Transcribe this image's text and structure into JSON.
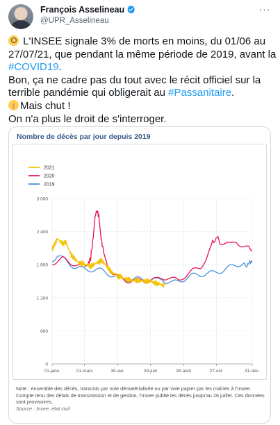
{
  "header": {
    "name": "François Asselineau",
    "handle": "@UPR_Asselineau"
  },
  "tweet": {
    "line1": "L'INSEE signale 3% de morts en moins, du 01/06 au 27/07/21, que pendant la même période de 2019, avant la ",
    "tag1": "#COVID19",
    "line1_end": ".",
    "line2": "Bon, ça ne cadre pas du tout avec le récit officiel sur la terrible pandémie qui obligerait au ",
    "tag2": "#Passanitaire",
    "line2_end": ".",
    "line3": "Mais chut !",
    "line4": "On n'a plus le droit de s'interroger.",
    "emoji1": "magnifying-glass-emoji",
    "emoji2": "shushing-face-emoji",
    "tag_color": "#1d9bf0"
  },
  "chart_data": {
    "type": "line",
    "title": "Nombre de décès par jour depuis 2019",
    "x_ticks": [
      "01-janv.",
      "01-mars",
      "30-avr.",
      "29-juin",
      "28-août",
      "27-oct.",
      "31-déc."
    ],
    "x_tick_days": [
      0,
      59,
      119,
      179,
      239,
      299,
      364
    ],
    "y_ticks": [
      "0",
      "600",
      "1 200",
      "1 800",
      "2 400",
      "3 000"
    ],
    "ylim": [
      0,
      3000
    ],
    "legend_position": "top-left",
    "series": [
      {
        "name": "2021",
        "color": "#f2c200",
        "points": [
          [
            0,
            2050
          ],
          [
            5,
            2150
          ],
          [
            10,
            2250
          ],
          [
            15,
            2200
          ],
          [
            20,
            2180
          ],
          [
            25,
            2220
          ],
          [
            30,
            2100
          ],
          [
            35,
            2000
          ],
          [
            40,
            1950
          ],
          [
            45,
            1900
          ],
          [
            50,
            1850
          ],
          [
            55,
            1850
          ],
          [
            60,
            1800
          ],
          [
            65,
            1800
          ],
          [
            70,
            1750
          ],
          [
            75,
            1780
          ],
          [
            80,
            1800
          ],
          [
            85,
            1820
          ],
          [
            90,
            1850
          ],
          [
            95,
            1800
          ],
          [
            100,
            1750
          ],
          [
            105,
            1700
          ],
          [
            110,
            1650
          ],
          [
            115,
            1650
          ],
          [
            120,
            1600
          ],
          [
            125,
            1620
          ],
          [
            130,
            1580
          ],
          [
            135,
            1560
          ],
          [
            140,
            1550
          ],
          [
            145,
            1520
          ],
          [
            150,
            1520
          ],
          [
            155,
            1500
          ],
          [
            160,
            1490
          ],
          [
            165,
            1480
          ],
          [
            170,
            1470
          ],
          [
            175,
            1480
          ],
          [
            180,
            1470
          ],
          [
            185,
            1460
          ],
          [
            190,
            1450
          ],
          [
            195,
            1460
          ],
          [
            200,
            1450
          ],
          [
            205,
            1440
          ]
        ]
      },
      {
        "name": "2020",
        "color": "#e8154f",
        "points": [
          [
            0,
            1800
          ],
          [
            10,
            1850
          ],
          [
            20,
            1900
          ],
          [
            30,
            1870
          ],
          [
            40,
            1850
          ],
          [
            50,
            1800
          ],
          [
            60,
            1780
          ],
          [
            65,
            1800
          ],
          [
            70,
            1900
          ],
          [
            75,
            2300
          ],
          [
            78,
            2650
          ],
          [
            82,
            2800
          ],
          [
            86,
            2600
          ],
          [
            90,
            2200
          ],
          [
            95,
            1950
          ],
          [
            100,
            1800
          ],
          [
            110,
            1650
          ],
          [
            120,
            1600
          ],
          [
            130,
            1560
          ],
          [
            140,
            1530
          ],
          [
            150,
            1510
          ],
          [
            160,
            1490
          ],
          [
            170,
            1480
          ],
          [
            180,
            1500
          ],
          [
            190,
            1520
          ],
          [
            200,
            1580
          ],
          [
            210,
            1600
          ],
          [
            220,
            1560
          ],
          [
            230,
            1530
          ],
          [
            240,
            1580
          ],
          [
            250,
            1620
          ],
          [
            260,
            1680
          ],
          [
            270,
            1750
          ],
          [
            280,
            1900
          ],
          [
            290,
            2150
          ],
          [
            298,
            2300
          ],
          [
            305,
            2250
          ],
          [
            315,
            2200
          ],
          [
            325,
            2150
          ],
          [
            335,
            2200
          ],
          [
            345,
            2120
          ],
          [
            355,
            2080
          ],
          [
            364,
            2050
          ]
        ]
      },
      {
        "name": "2019",
        "color": "#4a8fdc",
        "points": [
          [
            0,
            1850
          ],
          [
            10,
            1950
          ],
          [
            20,
            1900
          ],
          [
            30,
            1850
          ],
          [
            40,
            1800
          ],
          [
            50,
            1760
          ],
          [
            60,
            1720
          ],
          [
            70,
            1700
          ],
          [
            80,
            1680
          ],
          [
            90,
            1660
          ],
          [
            100,
            1640
          ],
          [
            110,
            1610
          ],
          [
            120,
            1590
          ],
          [
            130,
            1570
          ],
          [
            140,
            1550
          ],
          [
            150,
            1530
          ],
          [
            160,
            1520
          ],
          [
            170,
            1510
          ],
          [
            180,
            1500
          ],
          [
            190,
            1510
          ],
          [
            200,
            1560
          ],
          [
            210,
            1520
          ],
          [
            220,
            1500
          ],
          [
            230,
            1510
          ],
          [
            240,
            1530
          ],
          [
            250,
            1560
          ],
          [
            260,
            1580
          ],
          [
            270,
            1610
          ],
          [
            280,
            1640
          ],
          [
            290,
            1670
          ],
          [
            300,
            1700
          ],
          [
            310,
            1720
          ],
          [
            320,
            1740
          ],
          [
            330,
            1760
          ],
          [
            340,
            1780
          ],
          [
            350,
            1800
          ],
          [
            358,
            1830
          ],
          [
            364,
            1850
          ]
        ]
      }
    ]
  },
  "note": {
    "text": "Note : ensemble des décès, transmis par voie dématérialisée ou par voie papier par les mairies à l'Insee. Compte tenu des délais de transmission et de gestion, l'Insee publie les décès jusqu'au 26 juillet. Ces données sont provisoires.",
    "source": "Source : Insee, état civil"
  }
}
